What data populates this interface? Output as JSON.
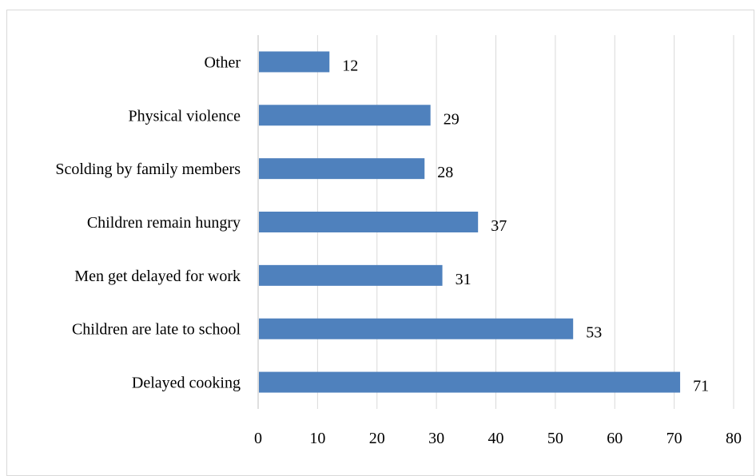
{
  "chart_data": {
    "type": "bar",
    "orientation": "horizontal",
    "title": "",
    "xlabel": "",
    "ylabel": "",
    "categories": [
      "Other",
      "Physical violence",
      "Scolding by family members",
      "Children remain hungry",
      "Men get delayed for work",
      "Children are late to school",
      "Delayed cooking"
    ],
    "values": [
      12,
      29,
      28,
      37,
      31,
      53,
      71
    ],
    "xlim": [
      0,
      80
    ],
    "xticks": [
      0,
      10,
      20,
      30,
      40,
      50,
      60,
      70,
      80
    ],
    "gridlines": "vertical",
    "legend": "none",
    "colors": {
      "bar": "#4f81bd",
      "grid": "#d9d9d9",
      "text": "#000000",
      "border": "#d9d9d9"
    }
  }
}
